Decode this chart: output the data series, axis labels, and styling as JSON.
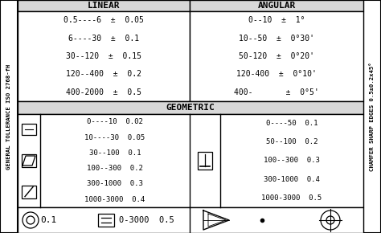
{
  "title_left": "GENERAL TOLLERANCE ISO 2768-fH",
  "title_right": "CHAMFER SHARP EDGES 0.5±0.2x45°",
  "linear_header": "LINEAR",
  "angular_header": "ANGULAR",
  "geometric_header": "GEOMETRIC",
  "linear_rows": [
    "0.5----6  ±  0.05",
    "6----30  ±  0.1",
    "30--120  ±  0.15",
    "120--400  ±  0.2",
    "400-2000  ±  0.5"
  ],
  "angular_rows": [
    "0--10  ±  1°",
    "10--50  ±  0°30'",
    "50-120  ±  0°20'",
    "120-400  ±  0°10'",
    "400-       ±  0°5'"
  ],
  "geom_left_rows": [
    "0----10  0.02",
    "10----30  0.05",
    "30--100  0.1",
    "100--300  0.2",
    "300-1000  0.3",
    "1000-3000  0.4"
  ],
  "geom_right_rows": [
    "0----50  0.1",
    "50--100  0.2",
    "100--300  0.3",
    "300-1000  0.4",
    "1000-3000  0.5"
  ],
  "bottom_text1": "0.1",
  "bottom_text2": "0-3000  0.5"
}
